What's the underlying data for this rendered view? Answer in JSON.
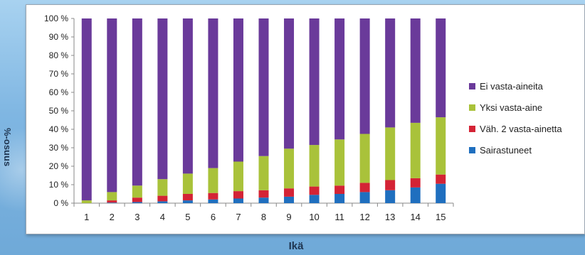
{
  "chart_data": {
    "type": "bar",
    "stacked": "percent",
    "title": "",
    "xlabel": "Ikä",
    "ylabel": "%-osuus",
    "ylim": [
      0,
      100
    ],
    "yticks": [
      "0 %",
      "10 %",
      "20 %",
      "30 %",
      "40 %",
      "50 %",
      "60 %",
      "70 %",
      "80 %",
      "90 %",
      "100 %"
    ],
    "categories": [
      "1",
      "2",
      "3",
      "4",
      "5",
      "6",
      "7",
      "8",
      "9",
      "10",
      "11",
      "12",
      "13",
      "14",
      "15"
    ],
    "grid": false,
    "legend_position": "right",
    "legend_order": [
      "Ei vasta-aineita",
      "Yksi vasta-aine",
      "Väh. 2 vasta-ainetta",
      "Sairastuneet"
    ],
    "series": [
      {
        "name": "Sairastuneet",
        "color": "#1f6fbf",
        "values": [
          0,
          0.3,
          0.6,
          1.0,
          1.5,
          2,
          2.5,
          3,
          3.5,
          4.5,
          5,
          6,
          7,
          8.5,
          10.5
        ]
      },
      {
        "name": "Väh. 2 vasta-ainetta",
        "color": "#d42335",
        "values": [
          0,
          1.2,
          2.4,
          3,
          3.5,
          3.5,
          4,
          4,
          4.5,
          4.5,
          4.5,
          5,
          5.5,
          5,
          5
        ]
      },
      {
        "name": "Yksi vasta-aine",
        "color": "#a9c23a",
        "values": [
          1.5,
          4.5,
          6.5,
          9,
          11,
          13.5,
          16,
          18.5,
          21.5,
          22.5,
          25,
          26.5,
          28.5,
          30,
          31
        ]
      },
      {
        "name": "Ei vasta-aineita",
        "color": "#6a3a9a",
        "values": [
          98.5,
          94,
          90.5,
          87,
          84,
          81,
          77.5,
          74.5,
          70.5,
          68.5,
          65.5,
          62.5,
          59,
          56.5,
          53.5
        ]
      }
    ]
  }
}
